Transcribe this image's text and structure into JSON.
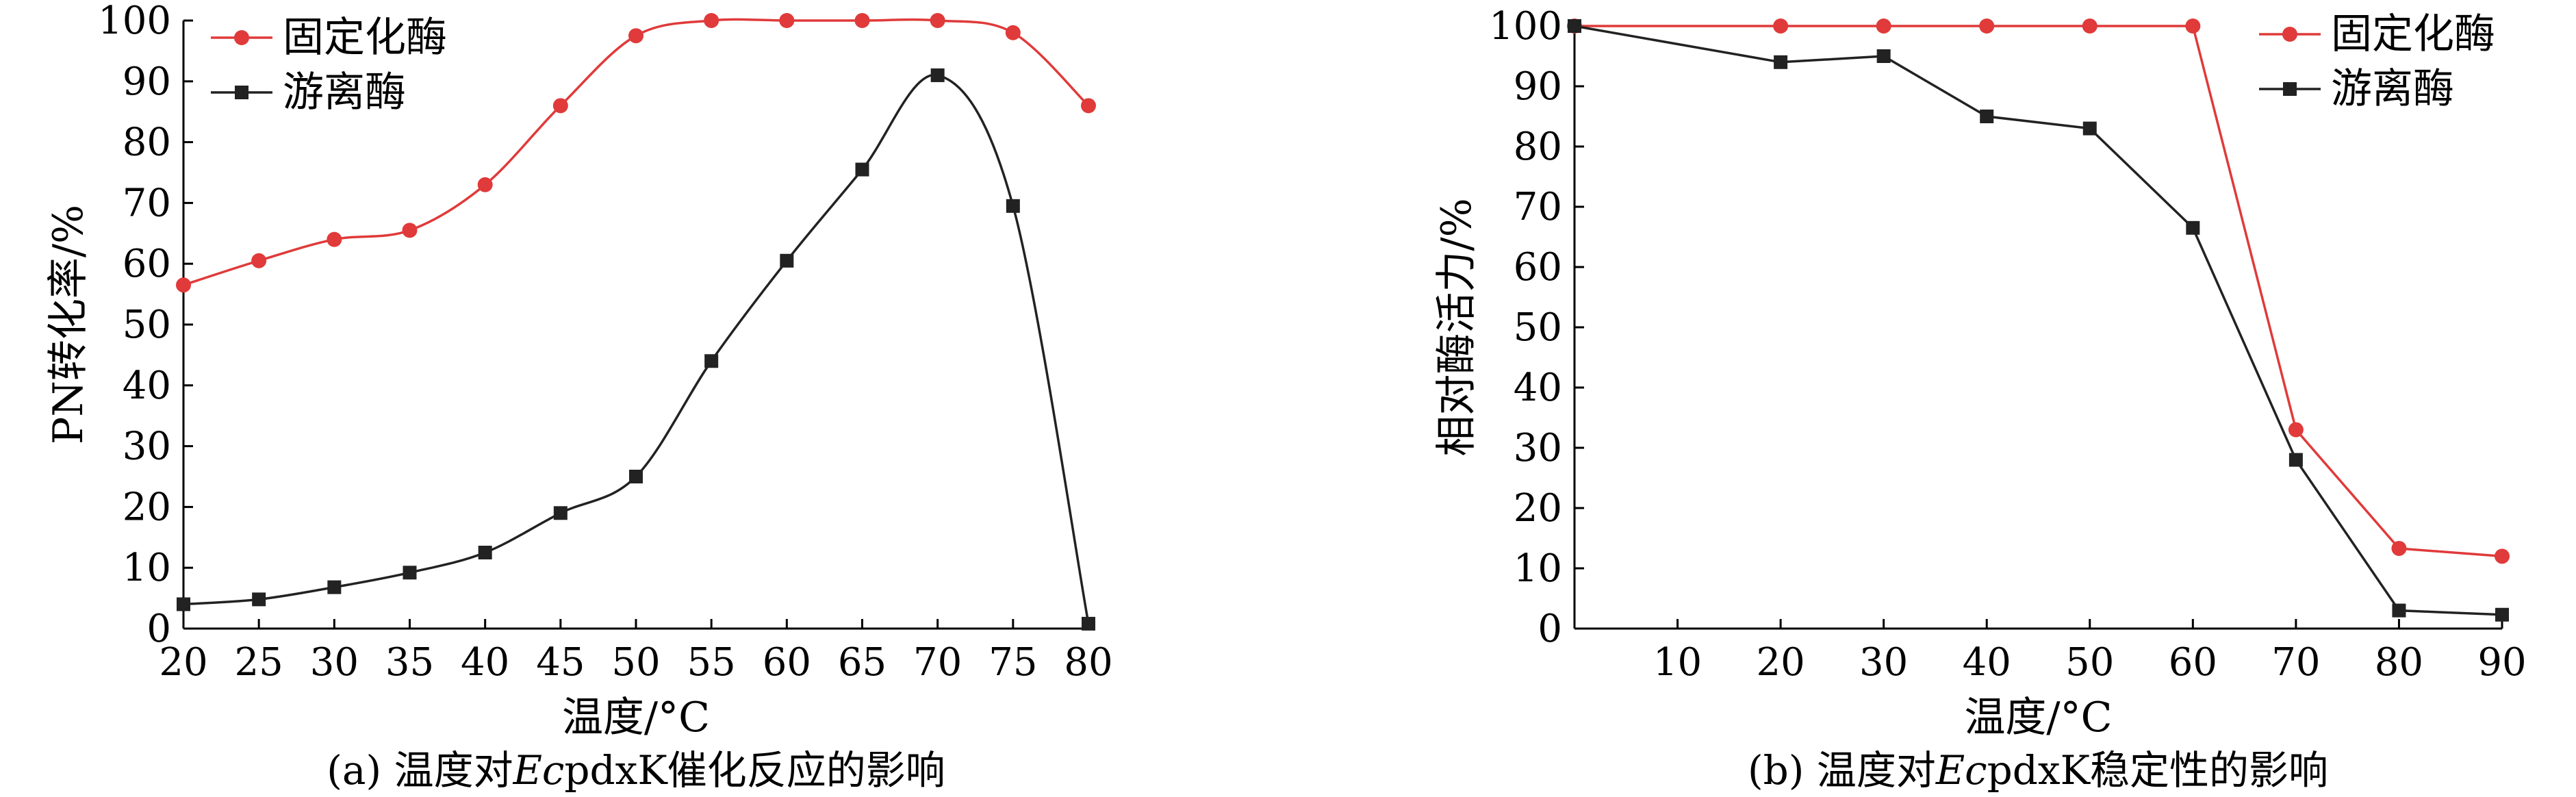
{
  "chart_data": [
    {
      "type": "line",
      "caption_prefix": "(a) 温度对",
      "caption_italic": "Ec",
      "caption_suffix": "pdxK催化反应的影响",
      "xlabel": "温度/°C",
      "ylabel": "PN转化率/%",
      "xlim": [
        20,
        80
      ],
      "ylim": [
        0,
        100
      ],
      "xticks": [
        20,
        25,
        30,
        35,
        40,
        45,
        50,
        55,
        60,
        65,
        70,
        75,
        80
      ],
      "yticks": [
        0,
        10,
        20,
        30,
        40,
        50,
        60,
        70,
        80,
        90,
        100
      ],
      "smooth": true,
      "legend_position": "top-left",
      "series": [
        {
          "name": "固定化酶",
          "color": "#e03a3a",
          "marker": "circle",
          "x": [
            20,
            25,
            30,
            35,
            40,
            45,
            50,
            55,
            60,
            65,
            70,
            75,
            80
          ],
          "y": [
            56.5,
            60.5,
            64,
            65.5,
            73,
            86,
            97.5,
            100,
            100,
            100,
            100,
            98,
            86
          ]
        },
        {
          "name": "游离酶",
          "color": "#222222",
          "marker": "square",
          "x": [
            20,
            25,
            30,
            35,
            40,
            45,
            50,
            55,
            60,
            65,
            70,
            75,
            80
          ],
          "y": [
            4,
            4.8,
            6.8,
            9.2,
            12.5,
            19,
            25,
            44,
            60.5,
            75.5,
            91,
            69.5,
            0.8
          ]
        }
      ]
    },
    {
      "type": "line",
      "caption_prefix": "(b) 温度对",
      "caption_italic": "Ec",
      "caption_suffix": "pdxK稳定性的影响",
      "xlabel": "温度/°C",
      "ylabel": "相对酶活力/%",
      "xlim": [
        0,
        90
      ],
      "ylim": [
        0,
        100
      ],
      "xticks": [
        10,
        20,
        30,
        40,
        50,
        60,
        70,
        80,
        90
      ],
      "yticks": [
        0,
        10,
        20,
        30,
        40,
        50,
        60,
        70,
        80,
        90,
        100
      ],
      "smooth": false,
      "legend_position": "top-right",
      "series": [
        {
          "name": "固定化酶",
          "color": "#e03a3a",
          "marker": "circle",
          "x": [
            0,
            20,
            30,
            40,
            50,
            60,
            70,
            80,
            90
          ],
          "y": [
            100,
            100,
            100,
            100,
            100,
            100,
            33,
            13.3,
            12
          ]
        },
        {
          "name": "游离酶",
          "color": "#222222",
          "marker": "square",
          "x": [
            0,
            20,
            30,
            40,
            50,
            60,
            70,
            80,
            90
          ],
          "y": [
            100,
            94,
            95,
            85,
            83,
            66.5,
            28,
            3,
            2.3
          ]
        }
      ]
    }
  ]
}
